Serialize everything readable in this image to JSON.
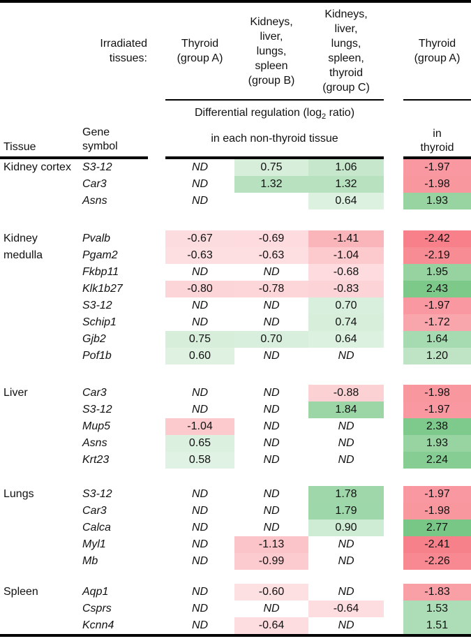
{
  "figure": {
    "header": {
      "irradiated_label": "Irradiated\ntissues:",
      "group_a_label": "Thyroid\n(group A)",
      "group_b_label": "Kidneys,\nliver,\nlungs,\nspleen\n(group B)",
      "group_c_label": "Kidneys,\nliver,\nlungs,\nspleen,\nthyroid\n(group C)",
      "thyroid_label": "Thyroid\n(group A)",
      "diff_title_prefix": "Differential regulation (log",
      "diff_title_sub": "2",
      "diff_title_suffix": " ratio)",
      "nonthyroid_subtitle": "in each non-thyroid tissue",
      "tissue_col": "Tissue",
      "gene_col": "Gene\nsymbol",
      "in_thyroid_col": "in\nthyroid"
    },
    "nd_label": "ND",
    "colors": {
      "positive_max": "#78C787",
      "negative_max": "#F77C86",
      "scale_cap": 2.5,
      "rule_color": "#000000",
      "text_color": "#111111"
    },
    "groups": [
      {
        "tissue": "Kidney cortex",
        "rows": [
          {
            "gene": "S3-12",
            "values": [
              "ND",
              "0.75",
              "1.06",
              "-1.97"
            ]
          },
          {
            "gene": "Car3",
            "values": [
              "ND",
              "1.32",
              "1.32",
              "-1.98"
            ]
          },
          {
            "gene": "Asns",
            "values": [
              "ND",
              "",
              "0.64",
              "1.93"
            ]
          }
        ]
      },
      {
        "tissue": "Kidney medulla",
        "rows": [
          {
            "gene": "Pvalb",
            "values": [
              "-0.67",
              "-0.69",
              "-1.41",
              "-2.42"
            ]
          },
          {
            "gene": "Pgam2",
            "values": [
              "-0.63",
              "-0.63",
              "-1.04",
              "-2.19"
            ]
          },
          {
            "gene": "Fkbp11",
            "values": [
              "ND",
              "ND",
              "-0.68",
              "1.95"
            ]
          },
          {
            "gene": "Klk1b27",
            "values": [
              "-0.80",
              "-0.78",
              "-0.83",
              "2.43"
            ]
          },
          {
            "gene": "S3-12",
            "values": [
              "ND",
              "ND",
              "0.70",
              "-1.97"
            ]
          },
          {
            "gene": "Schip1",
            "values": [
              "ND",
              "ND",
              "0.74",
              "-1.72"
            ]
          },
          {
            "gene": "Gjb2",
            "values": [
              "0.75",
              "0.70",
              "0.64",
              "1.64"
            ]
          },
          {
            "gene": "Pof1b",
            "values": [
              "0.60",
              "ND",
              "ND",
              "1.20"
            ]
          }
        ]
      },
      {
        "tissue": "Liver",
        "rows": [
          {
            "gene": "Car3",
            "values": [
              "ND",
              "ND",
              "-0.88",
              "-1.98"
            ]
          },
          {
            "gene": "S3-12",
            "values": [
              "ND",
              "ND",
              "1.84",
              "-1.97"
            ]
          },
          {
            "gene": "Mup5",
            "values": [
              "-1.04",
              "ND",
              "ND",
              "2.38"
            ]
          },
          {
            "gene": "Asns",
            "values": [
              "0.65",
              "ND",
              "ND",
              "1.93"
            ]
          },
          {
            "gene": "Krt23",
            "values": [
              "0.58",
              "ND",
              "ND",
              "2.24"
            ]
          }
        ]
      },
      {
        "tissue": "Lungs",
        "rows": [
          {
            "gene": "S3-12",
            "values": [
              "ND",
              "ND",
              "1.78",
              "-1.97"
            ]
          },
          {
            "gene": "Car3",
            "values": [
              "ND",
              "ND",
              "1.79",
              "-1.98"
            ]
          },
          {
            "gene": "Calca",
            "values": [
              "ND",
              "ND",
              "0.90",
              "2.77"
            ]
          },
          {
            "gene": "Myl1",
            "values": [
              "ND",
              "-1.13",
              "ND",
              "-2.41"
            ]
          },
          {
            "gene": "Mb",
            "values": [
              "ND",
              "-0.99",
              "ND",
              "-2.26"
            ]
          }
        ]
      },
      {
        "tissue": "Spleen",
        "rows": [
          {
            "gene": "Aqp1",
            "values": [
              "ND",
              "-0.60",
              "ND",
              "-1.83"
            ]
          },
          {
            "gene": "Csprs",
            "values": [
              "ND",
              "ND",
              "-0.64",
              "1.53"
            ]
          },
          {
            "gene": "Kcnn4",
            "values": [
              "ND",
              "-0.64",
              "ND",
              "1.51"
            ]
          }
        ]
      }
    ]
  }
}
